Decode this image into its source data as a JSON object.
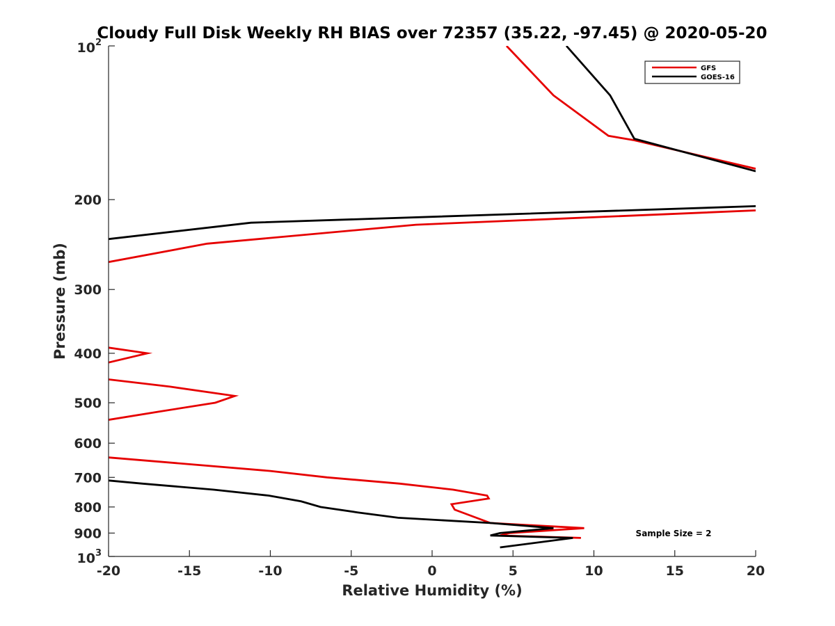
{
  "chart_data": {
    "type": "line",
    "title": "Cloudy Full Disk Weekly RH BIAS over 72357 (35.22, -97.45) @ 2020-05-20",
    "xlabel": "Relative Humidity (%)",
    "ylabel": "Pressure (mb)",
    "xlim": [
      -20,
      20
    ],
    "ylim": [
      100,
      1000
    ],
    "yscale": "log",
    "y_reversed": true,
    "grid": false,
    "legend_position": "top-right",
    "x_ticks": [
      "-20",
      "-15",
      "-10",
      "-5",
      "0",
      "5",
      "10",
      "15",
      "20"
    ],
    "y_ticks": [
      {
        "value": 100,
        "base": "10",
        "exp": "2"
      },
      {
        "value": 200,
        "label": "200"
      },
      {
        "value": 300,
        "label": "300"
      },
      {
        "value": 400,
        "label": "400"
      },
      {
        "value": 500,
        "label": "500"
      },
      {
        "value": 600,
        "label": "600"
      },
      {
        "value": 700,
        "label": "700"
      },
      {
        "value": 800,
        "label": "800"
      },
      {
        "value": 900,
        "label": "900"
      },
      {
        "value": 1000,
        "base": "10",
        "exp": "3"
      }
    ],
    "annotation": "Sample Size = 2",
    "series": [
      {
        "name": "GFS",
        "color": "#e60000",
        "segments": [
          [
            [
              4.6,
              100
            ],
            [
              7.5,
              125
            ],
            [
              10.9,
              150
            ],
            [
              12.5,
              153
            ],
            [
              20,
              174
            ]
          ],
          [
            [
              20,
              210
            ],
            [
              -1.0,
              224
            ],
            [
              -13.9,
              244
            ],
            [
              -20,
              265
            ]
          ],
          [
            [
              -20,
              390
            ],
            [
              -17.6,
              400
            ],
            [
              -20,
              417
            ]
          ],
          [
            [
              -20,
              450
            ],
            [
              -16.2,
              465
            ],
            [
              -12.2,
              485
            ],
            [
              -13.4,
              500
            ],
            [
              -16.8,
              520
            ],
            [
              -20,
              540
            ]
          ],
          [
            [
              -20,
              640
            ],
            [
              -10.0,
              680
            ],
            [
              -6.5,
              700
            ],
            [
              -2.0,
              720
            ],
            [
              1.3,
              740
            ],
            [
              3.4,
              760
            ],
            [
              3.5,
              770
            ],
            [
              1.2,
              790
            ],
            [
              1.4,
              810
            ],
            [
              3.6,
              860
            ],
            [
              9.4,
              880
            ],
            [
              4.8,
              900
            ],
            [
              4.2,
              910
            ],
            [
              9.2,
              920
            ]
          ]
        ]
      },
      {
        "name": "GOES-16",
        "color": "#000000",
        "segments": [
          [
            [
              8.3,
              100
            ],
            [
              11.0,
              125
            ],
            [
              12.5,
              152
            ],
            [
              20,
              176
            ]
          ],
          [
            [
              20,
              206
            ],
            [
              -11.2,
              222
            ],
            [
              -20,
              239
            ]
          ],
          [
            [
              -20,
              710
            ],
            [
              -17.9,
              720
            ],
            [
              -13.5,
              740
            ],
            [
              -10.1,
              760
            ],
            [
              -8.1,
              780
            ],
            [
              -6.9,
              800
            ],
            [
              -4.6,
              820
            ],
            [
              -2.1,
              840
            ],
            [
              3.6,
              860
            ],
            [
              7.5,
              880
            ],
            [
              4.2,
              900
            ],
            [
              3.6,
              910
            ],
            [
              8.7,
              920
            ],
            [
              4.2,
              960
            ]
          ]
        ]
      }
    ]
  }
}
